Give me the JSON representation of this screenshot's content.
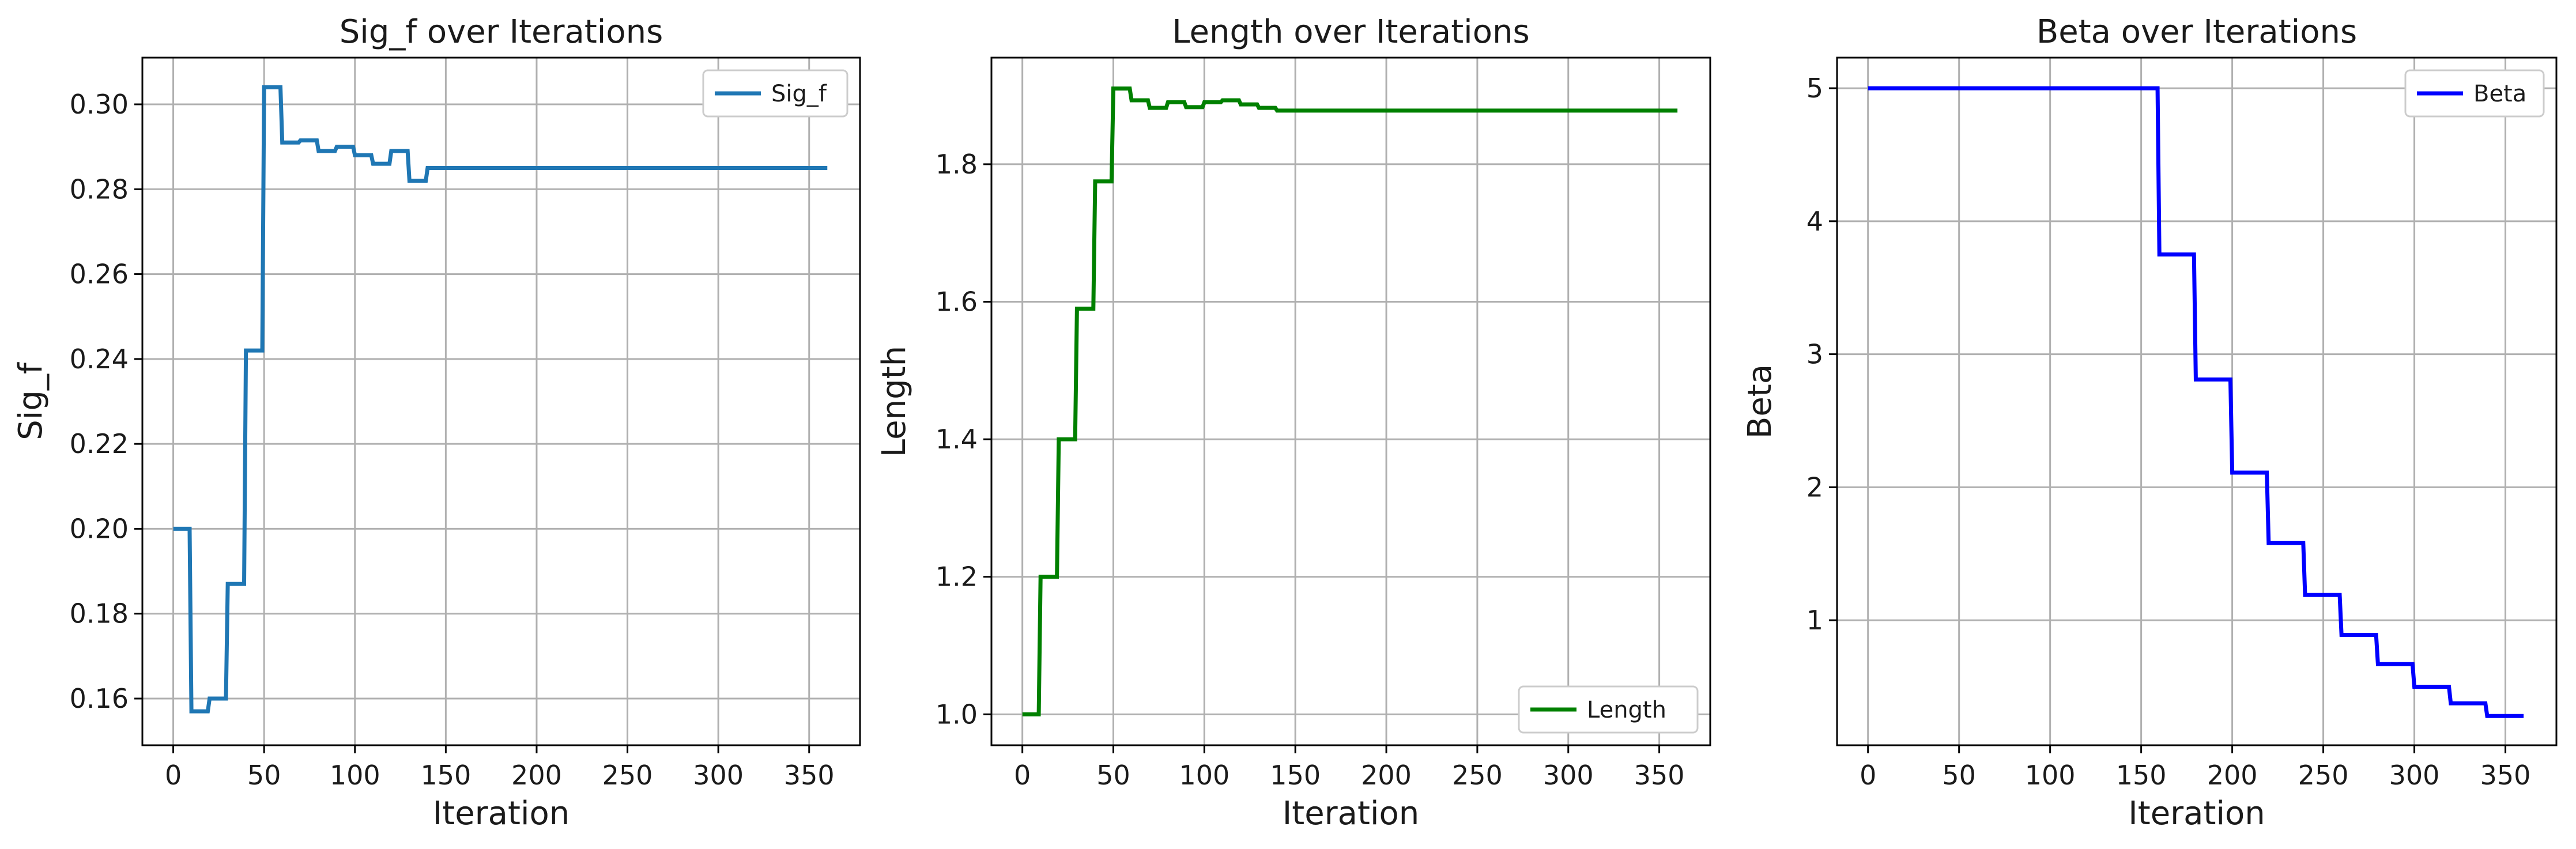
{
  "chart_data": [
    {
      "type": "line",
      "title": "Sig_f over Iterations",
      "xlabel": "Iteration",
      "ylabel": "Sig_f",
      "xlim": [
        -17,
        378
      ],
      "ylim": [
        0.149,
        0.311
      ],
      "xticks": [
        0,
        50,
        100,
        150,
        200,
        250,
        300,
        350
      ],
      "xtick_labels": [
        "0",
        "50",
        "100",
        "150",
        "200",
        "250",
        "300",
        "350"
      ],
      "yticks": [
        0.16,
        0.18,
        0.2,
        0.22,
        0.24,
        0.26,
        0.28,
        0.3
      ],
      "ytick_labels": [
        "0.16",
        "0.18",
        "0.20",
        "0.22",
        "0.24",
        "0.26",
        "0.28",
        "0.30"
      ],
      "grid": true,
      "legend_position": "top-right",
      "series": [
        {
          "name": "Sig_f",
          "color": "#1f77b4",
          "x": [
            0,
            9,
            10,
            19,
            20,
            29,
            30,
            39,
            40,
            49,
            50,
            59,
            60,
            69,
            70,
            79,
            80,
            89,
            90,
            99,
            100,
            109,
            110,
            119,
            120,
            129,
            130,
            139,
            140,
            360
          ],
          "y": [
            0.2,
            0.2,
            0.157,
            0.157,
            0.16,
            0.16,
            0.187,
            0.187,
            0.242,
            0.242,
            0.304,
            0.304,
            0.291,
            0.291,
            0.2915,
            0.2915,
            0.289,
            0.289,
            0.29,
            0.29,
            0.288,
            0.288,
            0.286,
            0.286,
            0.289,
            0.289,
            0.282,
            0.282,
            0.285,
            0.285
          ]
        }
      ]
    },
    {
      "type": "line",
      "title": "Length over Iterations",
      "xlabel": "Iteration",
      "ylabel": "Length",
      "xlim": [
        -17,
        378
      ],
      "ylim": [
        0.955,
        1.955
      ],
      "xticks": [
        0,
        50,
        100,
        150,
        200,
        250,
        300,
        350
      ],
      "xtick_labels": [
        "0",
        "50",
        "100",
        "150",
        "200",
        "250",
        "300",
        "350"
      ],
      "yticks": [
        1.0,
        1.2,
        1.4,
        1.6,
        1.8
      ],
      "ytick_labels": [
        "1.0",
        "1.2",
        "1.4",
        "1.6",
        "1.8"
      ],
      "grid": true,
      "legend_position": "bottom-right",
      "series": [
        {
          "name": "Length",
          "color": "#008000",
          "x": [
            0,
            9,
            10,
            19,
            20,
            29,
            30,
            39,
            40,
            49,
            50,
            59,
            60,
            69,
            70,
            79,
            80,
            89,
            90,
            99,
            100,
            109,
            110,
            119,
            120,
            129,
            130,
            139,
            140,
            360
          ],
          "y": [
            1.0,
            1.0,
            1.2,
            1.2,
            1.4,
            1.4,
            1.59,
            1.59,
            1.775,
            1.775,
            1.91,
            1.91,
            1.893,
            1.893,
            1.882,
            1.882,
            1.89,
            1.89,
            1.883,
            1.883,
            1.89,
            1.89,
            1.893,
            1.893,
            1.887,
            1.887,
            1.882,
            1.882,
            1.878,
            1.878
          ]
        }
      ]
    },
    {
      "type": "line",
      "title": "Beta over Iterations",
      "xlabel": "Iteration",
      "ylabel": "Beta",
      "xlim": [
        -17,
        378
      ],
      "ylim": [
        0.06,
        5.23
      ],
      "xticks": [
        0,
        50,
        100,
        150,
        200,
        250,
        300,
        350
      ],
      "xtick_labels": [
        "0",
        "50",
        "100",
        "150",
        "200",
        "250",
        "300",
        "350"
      ],
      "yticks": [
        1,
        2,
        3,
        4,
        5
      ],
      "ytick_labels": [
        "1",
        "2",
        "3",
        "4",
        "5"
      ],
      "grid": true,
      "legend_position": "top-right",
      "series": [
        {
          "name": "Beta",
          "color": "#0000ff",
          "x": [
            0,
            159,
            160,
            179,
            180,
            199,
            200,
            219,
            220,
            239,
            240,
            259,
            260,
            279,
            280,
            299,
            300,
            319,
            320,
            339,
            340,
            360
          ],
          "y": [
            5.0,
            5.0,
            3.75,
            3.75,
            2.81,
            2.81,
            2.11,
            2.11,
            1.58,
            1.58,
            1.19,
            1.19,
            0.89,
            0.89,
            0.67,
            0.67,
            0.5,
            0.5,
            0.375,
            0.375,
            0.28,
            0.28
          ]
        }
      ]
    }
  ]
}
